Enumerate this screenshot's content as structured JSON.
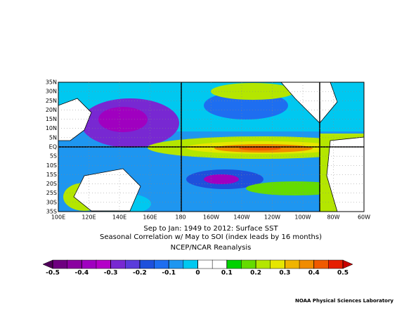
{
  "map": {
    "lat_labels": [
      "35N",
      "30N",
      "25N",
      "20N",
      "15N",
      "10N",
      "5N",
      "EQ",
      "5S",
      "10S",
      "15S",
      "20S",
      "25S",
      "30S",
      "35S"
    ],
    "lon_labels": [
      "100E",
      "120E",
      "140E",
      "160E",
      "180",
      "160W",
      "140W",
      "120W",
      "100W",
      "80W",
      "60W"
    ],
    "title_lines": [
      "Sep to Jan: 1949 to 2012: Surface SST",
      "Seasonal Correlation w/ May to  SOI (index leads by 16 months)"
    ],
    "subtitle": "NCEP/NCAR Reanalysis",
    "colorbar": {
      "ticks": [
        -0.5,
        -0.4,
        -0.3,
        -0.2,
        -0.1,
        0,
        0.1,
        0.2,
        0.3,
        0.4,
        0.5
      ],
      "colors": [
        "#6e0080",
        "#8a00a0",
        "#a000c0",
        "#b400c8",
        "#7828d2",
        "#5a3cdc",
        "#1e50dc",
        "#1e6ef0",
        "#1e96f0",
        "#00c8f0",
        "#ffffff",
        "#ffffff",
        "#00d200",
        "#64dc00",
        "#b4e600",
        "#e6e600",
        "#f0b400",
        "#f08c00",
        "#f05a00",
        "#e61e00"
      ],
      "low_color": "#50005a",
      "high_color": "#c80000"
    },
    "footer": "NOAA Physical Sciences Laboratory"
  }
}
